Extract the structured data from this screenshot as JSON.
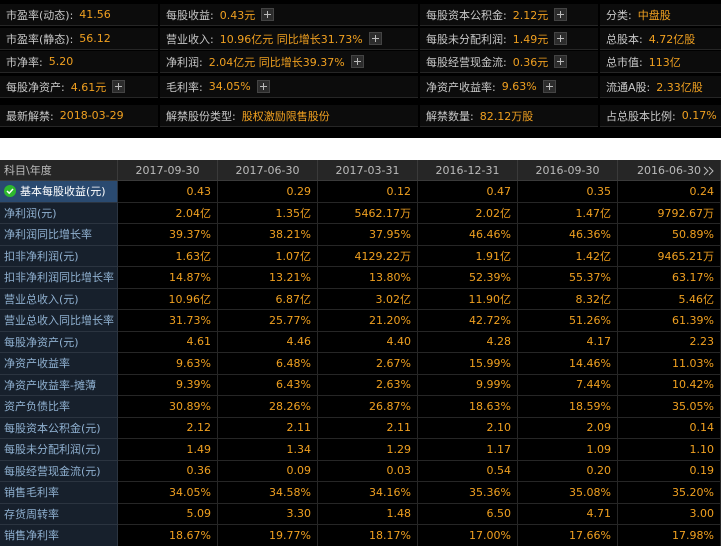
{
  "summary": {
    "rows": [
      [
        {
          "label": "市盈率(动态):",
          "value": "41.56"
        },
        {
          "label": "每股收益:",
          "value": "0.43元",
          "button": true
        },
        {
          "label": "每股资本公积金:",
          "value": "2.12元",
          "button": true
        },
        {
          "label": "分类:",
          "value": "中盘股"
        }
      ],
      [
        {
          "label": "市盈率(静态):",
          "value": "56.12"
        },
        {
          "label": "营业收入:",
          "value": "10.96亿元 同比增长31.73%",
          "button": true
        },
        {
          "label": "每股未分配利润:",
          "value": "1.49元",
          "button": true
        },
        {
          "label": "总股本:",
          "value": "4.72亿股"
        }
      ],
      [
        {
          "label": "市净率:",
          "value": "5.20"
        },
        {
          "label": "净利润:",
          "value": "2.04亿元 同比增长39.37%",
          "button": true
        },
        {
          "label": "每股经营现金流:",
          "value": "0.36元",
          "button": true
        },
        {
          "label": "总市值:",
          "value": "113亿"
        }
      ],
      [
        {
          "label": "每股净资产:",
          "value": "4.61元",
          "button": true
        },
        {
          "label": "毛利率:",
          "value": "34.05%",
          "button": true
        },
        {
          "label": "净资产收益率:",
          "value": "9.63%",
          "button": true
        },
        {
          "label": "流通A股:",
          "value": "2.33亿股"
        }
      ],
      [
        {
          "label": "最新解禁:",
          "value": "2018-03-29"
        },
        {
          "label": "解禁股份类型:",
          "value": "股权激励限售股份"
        },
        {
          "label": "解禁数量:",
          "value": "82.12万股"
        },
        {
          "label": "占总股本比例:",
          "value": "0.17%"
        }
      ]
    ]
  },
  "table": {
    "columns": [
      "科目\\年度",
      "2017-09-30",
      "2017-06-30",
      "2017-03-31",
      "2016-12-31",
      "2016-09-30",
      "2016-06-30"
    ],
    "rows": [
      {
        "label": "基本每股收益(元)",
        "values": [
          "0.43",
          "0.29",
          "0.12",
          "0.47",
          "0.35",
          "0.24"
        ],
        "selected": true
      },
      {
        "label": "净利润(元)",
        "values": [
          "2.04亿",
          "1.35亿",
          "5462.17万",
          "2.02亿",
          "1.47亿",
          "9792.67万"
        ]
      },
      {
        "label": "净利润同比增长率",
        "values": [
          "39.37%",
          "38.21%",
          "37.95%",
          "46.46%",
          "46.36%",
          "50.89%"
        ]
      },
      {
        "label": "扣非净利润(元)",
        "values": [
          "1.63亿",
          "1.07亿",
          "4129.22万",
          "1.91亿",
          "1.42亿",
          "9465.21万"
        ]
      },
      {
        "label": "扣非净利润同比增长率",
        "values": [
          "14.87%",
          "13.21%",
          "13.80%",
          "52.39%",
          "55.37%",
          "63.17%"
        ]
      },
      {
        "label": "营业总收入(元)",
        "values": [
          "10.96亿",
          "6.87亿",
          "3.02亿",
          "11.90亿",
          "8.32亿",
          "5.46亿"
        ]
      },
      {
        "label": "营业总收入同比增长率",
        "values": [
          "31.73%",
          "25.77%",
          "21.20%",
          "42.72%",
          "51.26%",
          "61.39%"
        ]
      },
      {
        "label": "每股净资产(元)",
        "values": [
          "4.61",
          "4.46",
          "4.40",
          "4.28",
          "4.17",
          "2.23"
        ]
      },
      {
        "label": "净资产收益率",
        "values": [
          "9.63%",
          "6.48%",
          "2.67%",
          "15.99%",
          "14.46%",
          "11.03%"
        ]
      },
      {
        "label": "净资产收益率-摊薄",
        "values": [
          "9.39%",
          "6.43%",
          "2.63%",
          "9.99%",
          "7.44%",
          "10.42%"
        ]
      },
      {
        "label": "资产负债比率",
        "values": [
          "30.89%",
          "28.26%",
          "26.87%",
          "18.63%",
          "18.59%",
          "35.05%"
        ]
      },
      {
        "label": "每股资本公积金(元)",
        "values": [
          "2.12",
          "2.11",
          "2.11",
          "2.10",
          "2.09",
          "0.14"
        ]
      },
      {
        "label": "每股未分配利润(元)",
        "values": [
          "1.49",
          "1.34",
          "1.29",
          "1.17",
          "1.09",
          "1.10"
        ]
      },
      {
        "label": "每股经营现金流(元)",
        "values": [
          "0.36",
          "0.09",
          "0.03",
          "0.54",
          "0.20",
          "0.19"
        ]
      },
      {
        "label": "销售毛利率",
        "values": [
          "34.05%",
          "34.58%",
          "34.16%",
          "35.36%",
          "35.08%",
          "35.20%"
        ]
      },
      {
        "label": "存货周转率",
        "values": [
          "5.09",
          "3.30",
          "1.48",
          "6.50",
          "4.71",
          "3.00"
        ]
      },
      {
        "label": "销售净利率",
        "values": [
          "18.67%",
          "19.77%",
          "18.17%",
          "17.00%",
          "17.66%",
          "17.98%"
        ]
      }
    ]
  }
}
